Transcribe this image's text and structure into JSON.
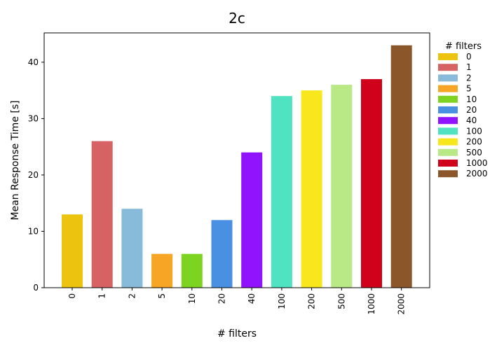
{
  "chart_data": {
    "type": "bar",
    "title": "2c",
    "xlabel": "# filters",
    "ylabel": "Mean Response Time [s]",
    "categories": [
      "0",
      "1",
      "2",
      "5",
      "10",
      "20",
      "40",
      "100",
      "200",
      "500",
      "1000",
      "2000"
    ],
    "values": [
      13,
      26,
      14,
      6,
      6,
      12,
      24,
      34,
      35,
      36,
      37,
      43
    ],
    "colors": [
      "#ecc30f",
      "#d66263",
      "#87bbd9",
      "#f6a524",
      "#7dd420",
      "#4a90e2",
      "#9013fe",
      "#50e3c2",
      "#f8e71c",
      "#b8e986",
      "#d0021b",
      "#8b572a"
    ],
    "ylim": [
      0,
      45.2
    ],
    "yticks": [
      0,
      10,
      20,
      30,
      40
    ],
    "grid": false,
    "legend": {
      "title": "# filters",
      "placement": "right",
      "entries": [
        "0",
        "1",
        "2",
        "5",
        "10",
        "20",
        "40",
        "100",
        "200",
        "500",
        "1000",
        "2000"
      ]
    }
  }
}
